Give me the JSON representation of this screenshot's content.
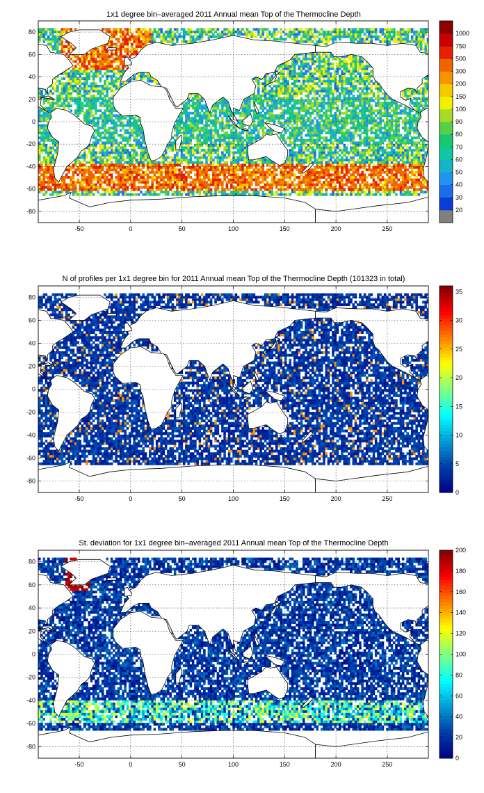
{
  "chart_data": [
    {
      "type": "heatmap",
      "title": "1x1 degree bin–averaged 2011 Annual mean Top of the Thermocline Depth",
      "xlim": [
        -90,
        290
      ],
      "ylim": [
        -90,
        90
      ],
      "x_ticks": [
        -50,
        0,
        50,
        100,
        150,
        200,
        250
      ],
      "y_ticks": [
        80,
        60,
        40,
        20,
        0,
        -20,
        -40,
        -60,
        -80
      ],
      "grid": true,
      "colorbar": {
        "type": "categorical",
        "labels": [
          "20",
          "30",
          "40",
          "50",
          "60",
          "70",
          "80",
          "90",
          "100",
          "150",
          "200",
          "300",
          "500",
          "750",
          "1000"
        ],
        "colors": [
          "#808080",
          "#0a3cd6",
          "#1a6ee8",
          "#1e96f0",
          "#16b4c8",
          "#10c8a0",
          "#18c870",
          "#56d048",
          "#a6dc28",
          "#f0f000",
          "#f5c800",
          "#f59600",
          "#f06400",
          "#e62000",
          "#c80000",
          "#8c0000"
        ]
      }
    },
    {
      "type": "heatmap",
      "title": "N of profiles per 1x1 degree bin for 2011 Annual mean Top of the Thermocline Depth  (101323 in total)",
      "xlim": [
        -90,
        290
      ],
      "ylim": [
        -90,
        90
      ],
      "x_ticks": [
        -50,
        0,
        50,
        100,
        150,
        200,
        250
      ],
      "y_ticks": [
        80,
        60,
        40,
        20,
        0,
        -20,
        -40,
        -60,
        -80
      ],
      "grid": true,
      "colorbar": {
        "type": "continuous",
        "range": [
          0,
          36
        ],
        "ticks": [
          0,
          5,
          10,
          15,
          20,
          25,
          30,
          35
        ]
      }
    },
    {
      "type": "heatmap",
      "title": "St. deviation for 1x1 degree bin–averaged 2011 Annual mean Top of the Thermocline Depth",
      "xlim": [
        -90,
        290
      ],
      "ylim": [
        -90,
        90
      ],
      "x_ticks": [
        -50,
        0,
        50,
        100,
        150,
        200,
        250
      ],
      "y_ticks": [
        80,
        60,
        40,
        20,
        0,
        -20,
        -40,
        -60,
        -80
      ],
      "grid": true,
      "colorbar": {
        "type": "continuous",
        "range": [
          0,
          200
        ],
        "ticks": [
          0,
          20,
          40,
          60,
          80,
          100,
          120,
          140,
          160,
          180,
          200
        ]
      }
    }
  ]
}
